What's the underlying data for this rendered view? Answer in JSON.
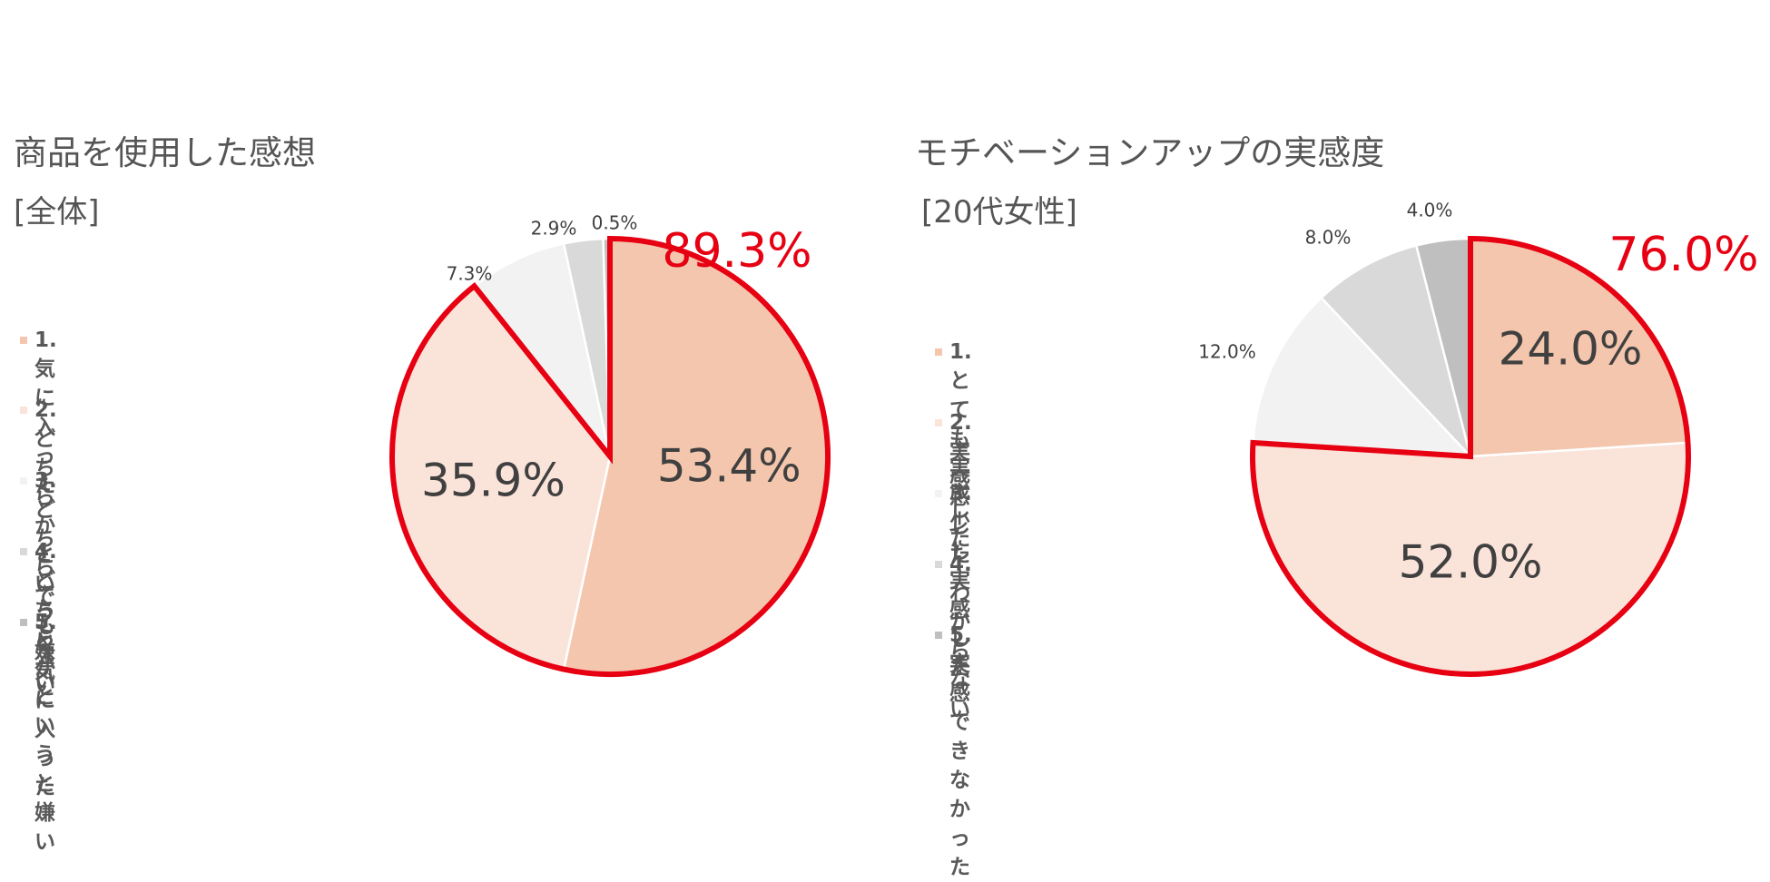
{
  "chart_data": [
    {
      "type": "pie",
      "title": "商品を使用した感想",
      "subtitle": "[全体]",
      "legend_position": "left",
      "slices": [
        {
          "label": "1.気に入った",
          "value": 53.4,
          "display": "53.4%",
          "color": "#f4c6ae"
        },
        {
          "label": "2.どちらかというと\n気に入った",
          "value": 35.9,
          "display": "35.9%",
          "color": "#fae3d9"
        },
        {
          "label": "3.どちらでもない",
          "value": 7.3,
          "display": "7.3%",
          "color": "#f2f2f2"
        },
        {
          "label": "4.どちらかというと\n嫌い",
          "value": 2.9,
          "display": "2.9%",
          "color": "#d9d9d9"
        },
        {
          "label": "5.嫌い",
          "value": 0.5,
          "display": "0.5%",
          "color": "#bfbfbf"
        }
      ],
      "highlight": {
        "total": "89.3%",
        "color": "#e60012"
      }
    },
    {
      "type": "pie",
      "title": "モチベーションアップの実感度",
      "subtitle": "[20代女性]",
      "legend_position": "left",
      "slices": [
        {
          "label": "1.とても実感した",
          "value": 24.0,
          "display": "24.0%",
          "color": "#f4c6ae"
        },
        {
          "label": "2.実感した",
          "value": 52.0,
          "display": "52.0%",
          "color": "#fae3d9"
        },
        {
          "label": "3.少し実感した",
          "value": 12.0,
          "display": "12.0%",
          "color": "#f2f2f2"
        },
        {
          "label": "4.わからない",
          "value": 8.0,
          "display": "8.0%",
          "color": "#d9d9d9"
        },
        {
          "label": "5.実感できなかった",
          "value": 4.0,
          "display": "4.0%",
          "color": "#bfbfbf"
        }
      ],
      "highlight": {
        "total": "76.0%",
        "color": "#e60012"
      }
    }
  ]
}
